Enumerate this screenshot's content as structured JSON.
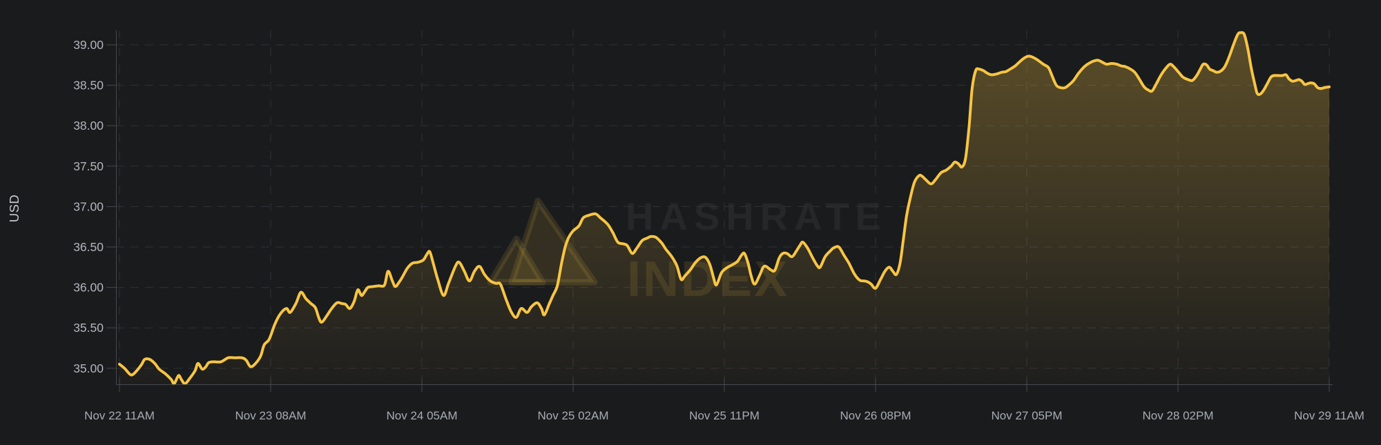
{
  "chart": {
    "ylabel": "USD",
    "watermark_line1": "HASHRATE",
    "watermark_line2": "INDEX"
  },
  "chart_data": {
    "type": "area",
    "series_name": "USD",
    "x_unit": "hours since Nov 22 11AM",
    "x_range_hours": [
      0,
      168
    ],
    "x_tick_hours": [
      0,
      21,
      42,
      63,
      84,
      105,
      126,
      147,
      168
    ],
    "x_tick_labels": [
      "Nov 22 11AM",
      "Nov 23 08AM",
      "Nov 24 05AM",
      "Nov 25 02AM",
      "Nov 25 11PM",
      "Nov 26 08PM",
      "Nov 27 05PM",
      "Nov 28 02PM",
      "Nov 29 11AM"
    ],
    "y_ticks": [
      35.0,
      35.5,
      36.0,
      36.5,
      37.0,
      37.5,
      38.0,
      38.5,
      39.0
    ],
    "y_tick_labels": [
      "35.00",
      "35.50",
      "36.00",
      "36.50",
      "37.00",
      "37.50",
      "38.00",
      "38.50",
      "39.00"
    ],
    "ylim": [
      34.8,
      39.3
    ],
    "grid": true,
    "legend": "none",
    "colors": {
      "background": "#1a1b1d",
      "line": "#f7c544",
      "fill_top": "rgba(247,197,68,0.30)",
      "fill_bottom": "rgba(247,197,68,0.02)",
      "grid": "#2f3237",
      "axis": "#45484d",
      "tick_label": "#b2b6bc",
      "x_tick_label": "#a8acb2",
      "axis_title": "#c6cacf",
      "watermark_text": "rgba(255,255,255,0.055)",
      "watermark_accent": "rgba(248,198,67,0.12)"
    },
    "points": [
      [
        0,
        35.05
      ],
      [
        0.7,
        35.0
      ],
      [
        1.4,
        34.93
      ],
      [
        1.8,
        34.92
      ],
      [
        2.4,
        34.97
      ],
      [
        3.1,
        35.05
      ],
      [
        3.5,
        35.11
      ],
      [
        4.2,
        35.11
      ],
      [
        4.9,
        35.06
      ],
      [
        5.5,
        34.99
      ],
      [
        6.4,
        34.93
      ],
      [
        7.2,
        34.86
      ],
      [
        7.6,
        34.81
      ],
      [
        8.2,
        34.91
      ],
      [
        8.6,
        34.86
      ],
      [
        9.1,
        34.81
      ],
      [
        9.8,
        34.88
      ],
      [
        10.5,
        34.97
      ],
      [
        10.9,
        35.06
      ],
      [
        11.5,
        34.99
      ],
      [
        12.0,
        35.02
      ],
      [
        12.4,
        35.07
      ],
      [
        13.1,
        35.08
      ],
      [
        14.1,
        35.08
      ],
      [
        15.1,
        35.13
      ],
      [
        16.0,
        35.13
      ],
      [
        17.0,
        35.13
      ],
      [
        17.6,
        35.1
      ],
      [
        18.2,
        35.02
      ],
      [
        18.9,
        35.06
      ],
      [
        19.6,
        35.15
      ],
      [
        20.1,
        35.29
      ],
      [
        20.8,
        35.36
      ],
      [
        21.6,
        35.55
      ],
      [
        22.4,
        35.68
      ],
      [
        23.2,
        35.74
      ],
      [
        23.7,
        35.69
      ],
      [
        24.5,
        35.8
      ],
      [
        25.2,
        35.94
      ],
      [
        25.9,
        35.86
      ],
      [
        26.6,
        35.8
      ],
      [
        27.2,
        35.75
      ],
      [
        27.7,
        35.62
      ],
      [
        28.1,
        35.57
      ],
      [
        28.8,
        35.65
      ],
      [
        29.4,
        35.73
      ],
      [
        30.2,
        35.81
      ],
      [
        30.9,
        35.8
      ],
      [
        31.4,
        35.79
      ],
      [
        32.0,
        35.74
      ],
      [
        32.6,
        35.83
      ],
      [
        33.1,
        35.97
      ],
      [
        33.6,
        35.9
      ],
      [
        34.0,
        35.94
      ],
      [
        34.5,
        36.0
      ],
      [
        35.2,
        36.01
      ],
      [
        36.0,
        36.02
      ],
      [
        36.8,
        36.03
      ],
      [
        37.3,
        36.2
      ],
      [
        37.9,
        36.08
      ],
      [
        38.3,
        36.01
      ],
      [
        38.8,
        36.06
      ],
      [
        39.3,
        36.13
      ],
      [
        40.0,
        36.24
      ],
      [
        40.7,
        36.3
      ],
      [
        41.4,
        36.31
      ],
      [
        42.2,
        36.34
      ],
      [
        42.7,
        36.41
      ],
      [
        43.1,
        36.44
      ],
      [
        43.6,
        36.29
      ],
      [
        44.2,
        36.1
      ],
      [
        45.0,
        35.9
      ],
      [
        45.7,
        36.05
      ],
      [
        46.7,
        36.27
      ],
      [
        47.2,
        36.31
      ],
      [
        47.9,
        36.2
      ],
      [
        48.6,
        36.08
      ],
      [
        49.3,
        36.2
      ],
      [
        50.0,
        36.26
      ],
      [
        50.7,
        36.16
      ],
      [
        51.5,
        36.08
      ],
      [
        52.3,
        36.05
      ],
      [
        52.9,
        36.04
      ],
      [
        53.7,
        35.85
      ],
      [
        54.4,
        35.7
      ],
      [
        55.1,
        35.63
      ],
      [
        55.8,
        35.74
      ],
      [
        56.6,
        35.69
      ],
      [
        57.2,
        35.76
      ],
      [
        58.0,
        35.81
      ],
      [
        58.6,
        35.74
      ],
      [
        59.0,
        35.66
      ],
      [
        59.7,
        35.8
      ],
      [
        60.2,
        35.9
      ],
      [
        60.8,
        36.02
      ],
      [
        61.4,
        36.3
      ],
      [
        61.9,
        36.5
      ],
      [
        62.4,
        36.62
      ],
      [
        63.0,
        36.7
      ],
      [
        63.8,
        36.76
      ],
      [
        64.4,
        36.86
      ],
      [
        65.1,
        36.89
      ],
      [
        66.1,
        36.91
      ],
      [
        66.8,
        36.86
      ],
      [
        67.8,
        36.78
      ],
      [
        68.5,
        36.68
      ],
      [
        69.2,
        36.56
      ],
      [
        69.9,
        36.54
      ],
      [
        70.5,
        36.52
      ],
      [
        71.2,
        36.42
      ],
      [
        71.8,
        36.48
      ],
      [
        72.6,
        36.58
      ],
      [
        73.3,
        36.61
      ],
      [
        73.8,
        36.63
      ],
      [
        74.5,
        36.62
      ],
      [
        75.3,
        36.55
      ],
      [
        75.9,
        36.47
      ],
      [
        76.7,
        36.38
      ],
      [
        77.4,
        36.27
      ],
      [
        78.0,
        36.1
      ],
      [
        78.5,
        36.14
      ],
      [
        79.3,
        36.22
      ],
      [
        80.0,
        36.31
      ],
      [
        80.8,
        36.37
      ],
      [
        81.4,
        36.37
      ],
      [
        82.0,
        36.28
      ],
      [
        82.5,
        36.12
      ],
      [
        82.9,
        36.03
      ],
      [
        83.6,
        36.18
      ],
      [
        84.3,
        36.24
      ],
      [
        85.1,
        36.28
      ],
      [
        85.8,
        36.32
      ],
      [
        86.4,
        36.4
      ],
      [
        86.8,
        36.42
      ],
      [
        87.3,
        36.3
      ],
      [
        87.7,
        36.15
      ],
      [
        88.2,
        36.04
      ],
      [
        88.9,
        36.15
      ],
      [
        89.4,
        36.25
      ],
      [
        89.8,
        36.26
      ],
      [
        90.4,
        36.22
      ],
      [
        91.0,
        36.21
      ],
      [
        91.6,
        36.36
      ],
      [
        92.1,
        36.42
      ],
      [
        92.7,
        36.42
      ],
      [
        93.4,
        36.38
      ],
      [
        94.0,
        36.45
      ],
      [
        94.5,
        36.52
      ],
      [
        94.9,
        36.56
      ],
      [
        95.6,
        36.48
      ],
      [
        96.3,
        36.36
      ],
      [
        96.9,
        36.27
      ],
      [
        97.3,
        36.25
      ],
      [
        98.0,
        36.38
      ],
      [
        98.7,
        36.45
      ],
      [
        99.2,
        36.49
      ],
      [
        99.9,
        36.5
      ],
      [
        100.6,
        36.4
      ],
      [
        101.3,
        36.3
      ],
      [
        102.1,
        36.16
      ],
      [
        102.8,
        36.09
      ],
      [
        103.4,
        36.08
      ],
      [
        103.9,
        36.07
      ],
      [
        104.4,
        36.04
      ],
      [
        105.0,
        35.99
      ],
      [
        105.7,
        36.1
      ],
      [
        106.3,
        36.2
      ],
      [
        106.9,
        36.25
      ],
      [
        107.4,
        36.2
      ],
      [
        107.9,
        36.16
      ],
      [
        108.4,
        36.3
      ],
      [
        108.8,
        36.55
      ],
      [
        109.3,
        36.88
      ],
      [
        109.8,
        37.1
      ],
      [
        110.4,
        37.3
      ],
      [
        111.0,
        37.38
      ],
      [
        111.4,
        37.38
      ],
      [
        112.0,
        37.33
      ],
      [
        112.7,
        37.28
      ],
      [
        113.3,
        37.33
      ],
      [
        114.1,
        37.42
      ],
      [
        114.8,
        37.45
      ],
      [
        115.5,
        37.5
      ],
      [
        116.0,
        37.55
      ],
      [
        116.5,
        37.53
      ],
      [
        117.0,
        37.49
      ],
      [
        117.5,
        37.6
      ],
      [
        118.0,
        38.0
      ],
      [
        118.4,
        38.45
      ],
      [
        118.9,
        38.68
      ],
      [
        119.4,
        38.7
      ],
      [
        120.0,
        38.68
      ],
      [
        120.5,
        38.65
      ],
      [
        121.1,
        38.63
      ],
      [
        121.8,
        38.64
      ],
      [
        122.5,
        38.66
      ],
      [
        123.1,
        38.67
      ],
      [
        123.7,
        38.7
      ],
      [
        124.4,
        38.74
      ],
      [
        125.0,
        38.79
      ],
      [
        125.7,
        38.84
      ],
      [
        126.3,
        38.86
      ],
      [
        127.0,
        38.84
      ],
      [
        127.7,
        38.8
      ],
      [
        128.3,
        38.76
      ],
      [
        129.0,
        38.72
      ],
      [
        129.5,
        38.62
      ],
      [
        130.1,
        38.5
      ],
      [
        130.7,
        38.47
      ],
      [
        131.3,
        38.47
      ],
      [
        131.8,
        38.5
      ],
      [
        132.5,
        38.56
      ],
      [
        133.2,
        38.65
      ],
      [
        134.0,
        38.73
      ],
      [
        134.6,
        38.77
      ],
      [
        135.3,
        38.8
      ],
      [
        135.9,
        38.81
      ],
      [
        136.6,
        38.78
      ],
      [
        137.1,
        38.76
      ],
      [
        137.8,
        38.77
      ],
      [
        138.5,
        38.76
      ],
      [
        139.1,
        38.74
      ],
      [
        139.7,
        38.73
      ],
      [
        140.4,
        38.7
      ],
      [
        141.0,
        38.66
      ],
      [
        141.6,
        38.58
      ],
      [
        142.3,
        38.48
      ],
      [
        142.9,
        38.44
      ],
      [
        143.4,
        38.43
      ],
      [
        144.0,
        38.52
      ],
      [
        144.6,
        38.62
      ],
      [
        145.3,
        38.71
      ],
      [
        145.9,
        38.76
      ],
      [
        146.4,
        38.73
      ],
      [
        147.1,
        38.66
      ],
      [
        147.7,
        38.6
      ],
      [
        148.4,
        38.57
      ],
      [
        149.0,
        38.56
      ],
      [
        149.6,
        38.62
      ],
      [
        150.1,
        38.7
      ],
      [
        150.5,
        38.76
      ],
      [
        151.0,
        38.75
      ],
      [
        151.4,
        38.7
      ],
      [
        151.9,
        38.68
      ],
      [
        152.4,
        38.66
      ],
      [
        153.0,
        38.68
      ],
      [
        153.5,
        38.73
      ],
      [
        154.1,
        38.85
      ],
      [
        154.7,
        39.0
      ],
      [
        155.3,
        39.13
      ],
      [
        155.7,
        39.15
      ],
      [
        156.2,
        39.13
      ],
      [
        156.7,
        38.95
      ],
      [
        157.2,
        38.7
      ],
      [
        157.7,
        38.5
      ],
      [
        158.0,
        38.4
      ],
      [
        158.4,
        38.39
      ],
      [
        158.9,
        38.44
      ],
      [
        159.4,
        38.52
      ],
      [
        159.9,
        38.6
      ],
      [
        160.3,
        38.62
      ],
      [
        160.9,
        38.62
      ],
      [
        161.5,
        38.62
      ],
      [
        162.0,
        38.63
      ],
      [
        162.4,
        38.58
      ],
      [
        162.9,
        38.55
      ],
      [
        163.4,
        38.56
      ],
      [
        163.8,
        38.57
      ],
      [
        164.2,
        38.55
      ],
      [
        164.6,
        38.51
      ],
      [
        165.0,
        38.52
      ],
      [
        165.4,
        38.53
      ],
      [
        165.9,
        38.52
      ],
      [
        166.4,
        38.47
      ],
      [
        166.9,
        38.46
      ],
      [
        167.3,
        38.47
      ],
      [
        168.0,
        38.48
      ]
    ]
  }
}
